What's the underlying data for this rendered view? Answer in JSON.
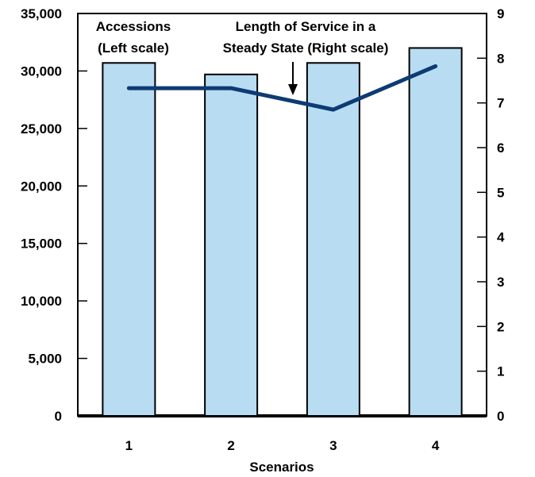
{
  "chart_data": {
    "type": "bar",
    "xlabel": "Scenarios",
    "categories": [
      "1",
      "2",
      "3",
      "4"
    ],
    "series": [
      {
        "name": "Accessions",
        "type": "bar",
        "axis": "left",
        "values": [
          30700,
          29700,
          30700,
          32000
        ],
        "color": "#b8dcf2",
        "edge_color": "#000000"
      },
      {
        "name": "Length of Service in a Steady State",
        "type": "line",
        "axis": "right",
        "values": [
          7.33,
          7.33,
          6.85,
          7.82
        ],
        "color": "#0d3b73"
      }
    ],
    "y_left": {
      "lim": [
        0,
        35000
      ],
      "ticks": [
        "0",
        "5,000",
        "10,000",
        "15,000",
        "20,000",
        "25,000",
        "30,000",
        "35,000"
      ]
    },
    "y_right": {
      "lim": [
        0,
        9
      ],
      "ticks": [
        "0",
        "1",
        "2",
        "3",
        "4",
        "5",
        "6",
        "7",
        "8",
        "9"
      ]
    },
    "annotations": {
      "accessions_line1": "Accessions",
      "accessions_line2": "(Left scale)",
      "los_line1": "Length of Service in a",
      "los_line2": "Steady State (Right scale)"
    },
    "grid": false,
    "legend": "none"
  }
}
